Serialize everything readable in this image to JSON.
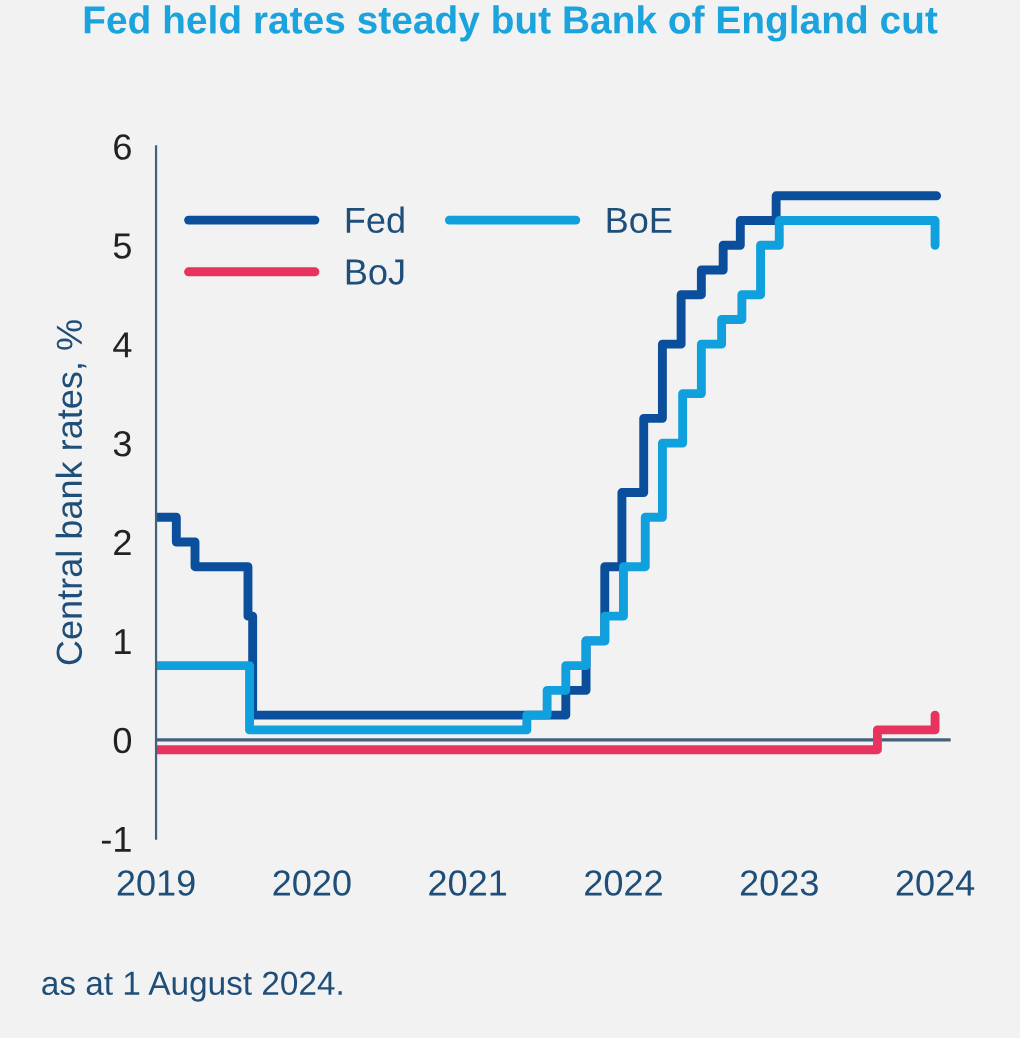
{
  "chart_data": {
    "type": "step",
    "title": "Fed held rates steady but Bank of England cut",
    "ylabel": "Central bank rates, %",
    "annotations": [
      "as at 1 August 2024."
    ],
    "xlim": [
      2019,
      2024.1
    ],
    "xticks": [
      2019,
      2020,
      2021,
      2022,
      2023,
      2024
    ],
    "ylim": [
      -1,
      6
    ],
    "yticks": [
      -1,
      0,
      1,
      2,
      3,
      4,
      5,
      6
    ],
    "grid": false,
    "legend": "top left",
    "ref_lines": [
      {
        "axis": "y",
        "value": 0,
        "color": "#44617b"
      }
    ],
    "series": [
      {
        "name": "Fed",
        "color": "#0b4f9c",
        "x": [
          2019.0,
          2019.13,
          2019.25,
          2019.59,
          2019.62,
          2021.63,
          2021.76,
          2021.88,
          2021.99,
          2022.13,
          2022.25,
          2022.37,
          2022.5,
          2022.64,
          2022.75,
          2022.98,
          2024.01
        ],
        "values": [
          2.25,
          2.0,
          1.75,
          1.25,
          0.25,
          0.5,
          1.0,
          1.75,
          2.5,
          3.25,
          4.0,
          4.5,
          4.75,
          5.0,
          5.25,
          5.5,
          5.5
        ]
      },
      {
        "name": "BoE",
        "color": "#0fa0dd",
        "x": [
          2019.0,
          2019.6,
          2021.38,
          2021.51,
          2021.63,
          2021.76,
          2021.88,
          2022.0,
          2022.14,
          2022.25,
          2022.38,
          2022.5,
          2022.63,
          2022.76,
          2022.88,
          2023.0,
          2024.0,
          2024.0
        ],
        "values": [
          0.75,
          0.1,
          0.25,
          0.5,
          0.75,
          1.0,
          1.25,
          1.75,
          2.25,
          3.0,
          3.5,
          4.0,
          4.25,
          4.5,
          5.0,
          5.25,
          5.25,
          5.0
        ]
      },
      {
        "name": "BoJ",
        "color": "#e8335f",
        "x": [
          2019.0,
          2023.63,
          2024.0,
          2024.0
        ],
        "values": [
          -0.1,
          0.1,
          0.1,
          0.25
        ]
      }
    ]
  }
}
